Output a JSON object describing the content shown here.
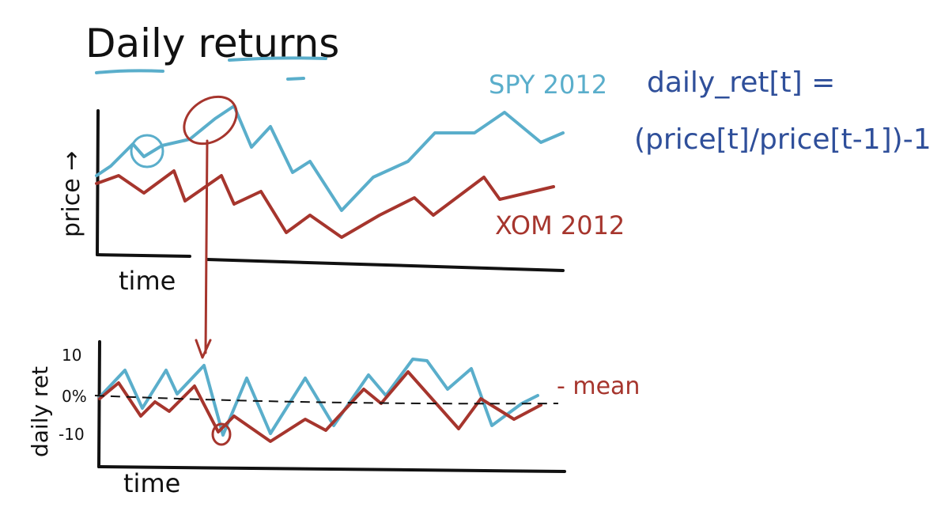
{
  "title": "Daily returns",
  "formula": {
    "line1": "daily_ret[t] =",
    "line2": "(price[t]/price[t-1])-1"
  },
  "top_chart": {
    "ylabel": "price →",
    "xlabel": "time",
    "series": [
      {
        "name": "SPY 2012",
        "color": "#5aaecb"
      },
      {
        "name": "XOM 2012",
        "color": "#a6352d"
      }
    ]
  },
  "bottom_chart": {
    "ylabel": "daily ret",
    "xlabel": "time",
    "ticks": [
      "10",
      "0%",
      "-10"
    ],
    "mean_label": "- mean"
  },
  "colors": {
    "ink": "#111111",
    "spy": "#5aaecb",
    "xom": "#a6352d",
    "formula": "#2f4f9a"
  }
}
